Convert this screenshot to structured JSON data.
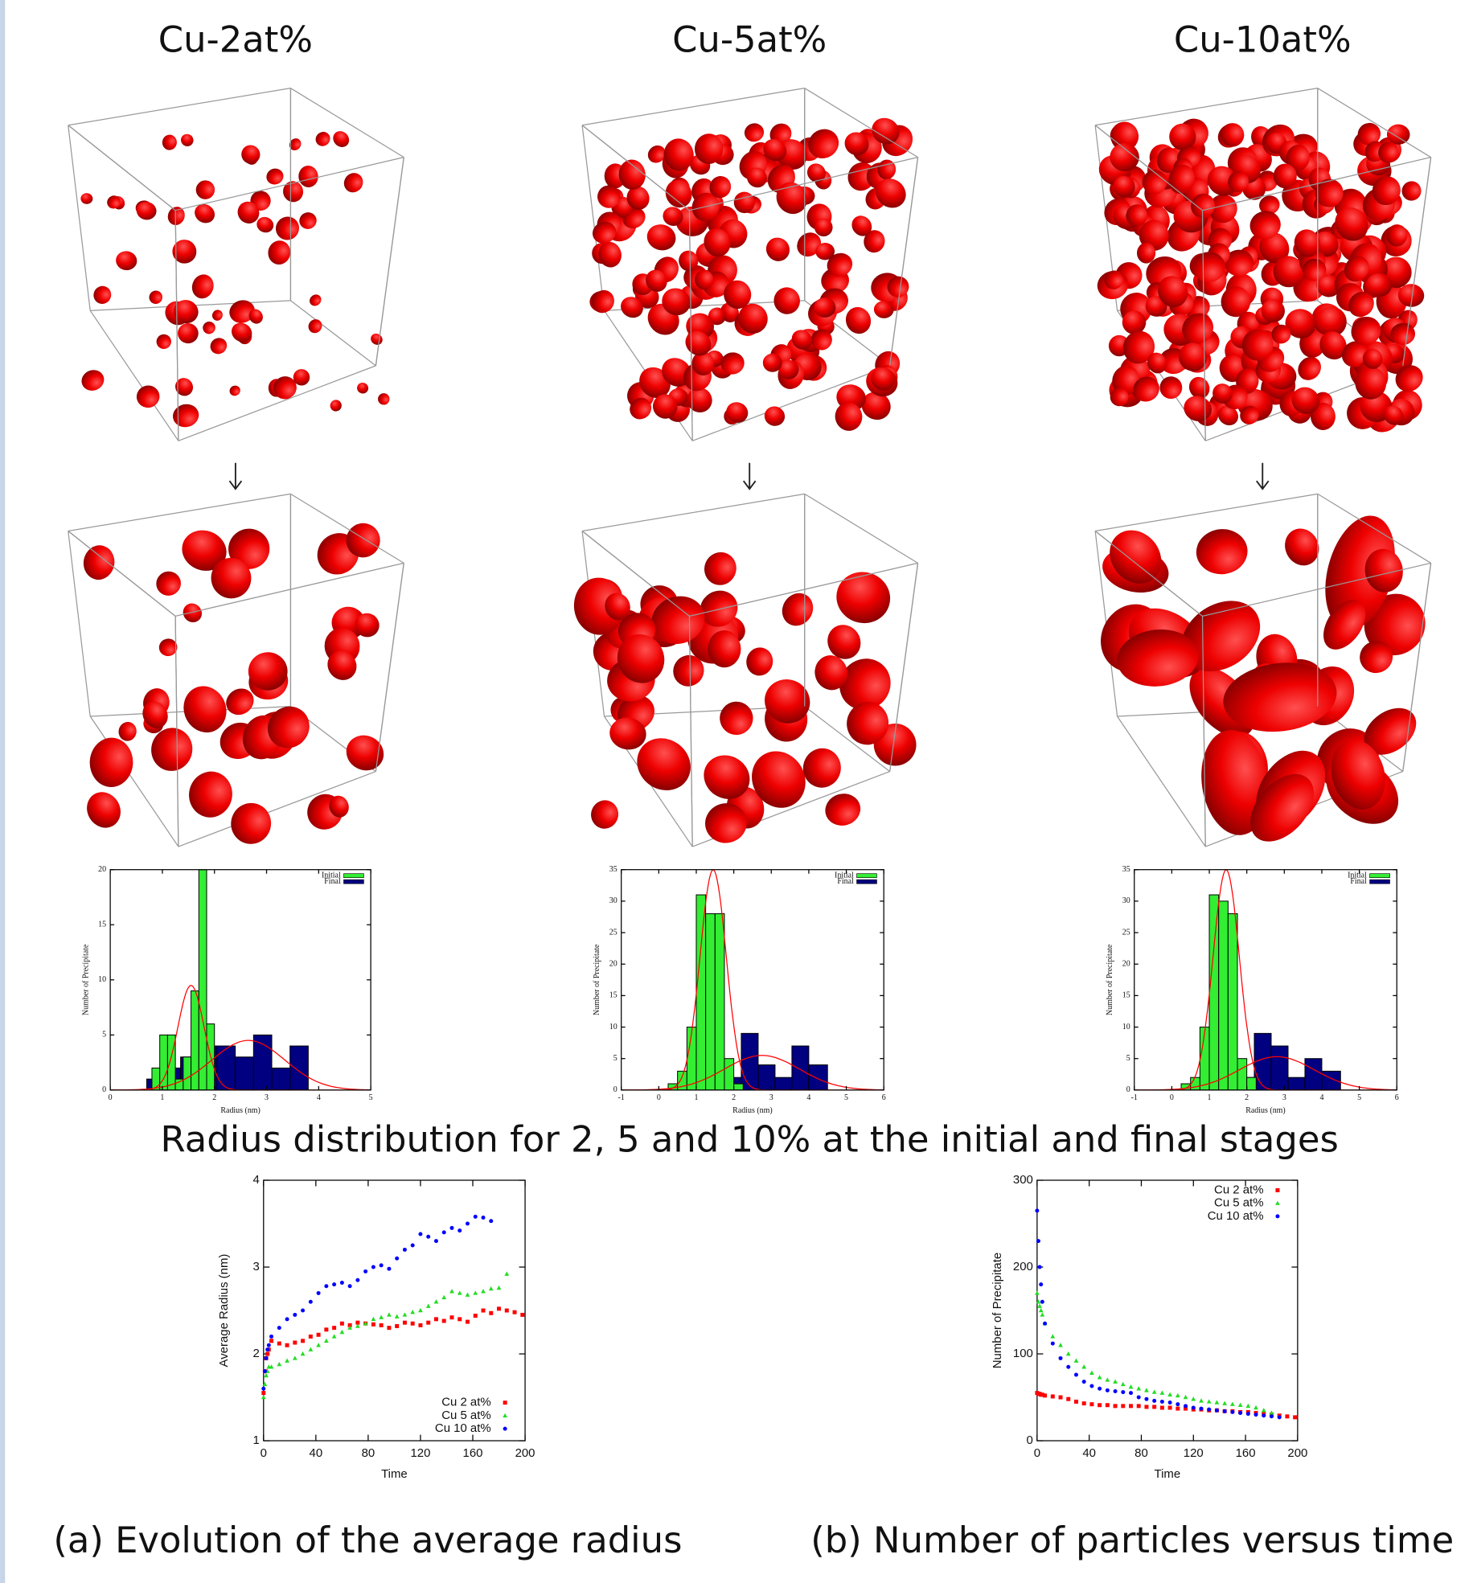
{
  "column_titles": [
    "Cu-2at%",
    "Cu-5at%",
    "Cu-10at%"
  ],
  "caption": "Radius distribution for 2, 5 and 10% at the initial and final stages",
  "subcaptions": [
    "(a) Evolution of the average radius",
    "(b) Number of particles versus time"
  ],
  "chart_data": [
    {
      "type": "histogram",
      "xlabel": "Radius (nm)",
      "ylabel": "Number of Precipitate",
      "xlim": [
        0,
        5
      ],
      "xticks": [
        0,
        1,
        2,
        3,
        4,
        5
      ],
      "ylim": [
        0,
        20
      ],
      "yticks": [
        0,
        5,
        10,
        15,
        20
      ],
      "legend": "upper right",
      "series": [
        {
          "name": "Initial",
          "color": "#33ee33",
          "bins": [
            0.8,
            0.95,
            1.1,
            1.25,
            1.4,
            1.55,
            1.7,
            1.85,
            2.0
          ],
          "values": [
            2,
            5,
            5,
            1,
            3,
            9,
            20,
            6
          ]
        },
        {
          "name": "Final",
          "color": "#000080",
          "bins": [
            0.7,
            1.0,
            1.35,
            1.7,
            2.05,
            2.4,
            2.75,
            3.1,
            3.45,
            3.8
          ],
          "values": [
            1,
            2,
            3,
            4,
            4,
            3,
            5,
            2,
            4
          ]
        }
      ],
      "fits": [
        {
          "color": "#ff0000",
          "mean": 1.55,
          "sd": 0.25,
          "peak": 9.5
        },
        {
          "color": "#ff0000",
          "mean": 2.65,
          "sd": 0.7,
          "peak": 4.5
        }
      ]
    },
    {
      "type": "histogram",
      "xlabel": "Radius (nm)",
      "ylabel": "Number of Precipitate",
      "xlim": [
        -1,
        6
      ],
      "xticks": [
        -1,
        0,
        1,
        2,
        3,
        4,
        5,
        6
      ],
      "ylim": [
        0,
        35
      ],
      "yticks": [
        0,
        5,
        10,
        15,
        20,
        25,
        30,
        35
      ],
      "legend": "upper right",
      "series": [
        {
          "name": "Initial",
          "color": "#33ee33",
          "bins": [
            0.25,
            0.5,
            0.75,
            1.0,
            1.25,
            1.5,
            1.75,
            2.0,
            2.25
          ],
          "values": [
            1,
            3,
            10,
            31,
            28,
            28,
            5,
            1
          ]
        },
        {
          "name": "Final",
          "color": "#000080",
          "bins": [
            0.4,
            0.85,
            1.3,
            1.75,
            2.2,
            2.65,
            3.1,
            3.55,
            4.0,
            4.5
          ],
          "values": [
            1,
            3,
            2,
            2,
            9,
            4,
            2,
            7,
            4,
            2
          ]
        }
      ],
      "fits": [
        {
          "color": "#ff0000",
          "mean": 1.45,
          "sd": 0.35,
          "peak": 35
        },
        {
          "color": "#ff0000",
          "mean": 2.75,
          "sd": 1.0,
          "peak": 5.5
        }
      ]
    },
    {
      "type": "histogram",
      "xlabel": "Radius (nm)",
      "ylabel": "Number of Precipitate",
      "xlim": [
        -1,
        6
      ],
      "xticks": [
        -1,
        0,
        1,
        2,
        3,
        4,
        5,
        6
      ],
      "ylim": [
        0,
        35
      ],
      "yticks": [
        0,
        5,
        10,
        15,
        20,
        25,
        30,
        35
      ],
      "legend": "upper right",
      "series": [
        {
          "name": "Initial",
          "color": "#33ee33",
          "bins": [
            0.25,
            0.5,
            0.75,
            1.0,
            1.25,
            1.5,
            1.75,
            2.0,
            2.25
          ],
          "values": [
            1,
            2,
            10,
            31,
            30,
            28,
            5,
            2
          ]
        },
        {
          "name": "Final",
          "color": "#000080",
          "bins": [
            0.4,
            0.85,
            1.3,
            1.75,
            2.2,
            2.65,
            3.1,
            3.55,
            4.0,
            4.5
          ],
          "values": [
            1,
            2,
            2,
            2,
            9,
            7,
            2,
            5,
            3,
            2
          ]
        }
      ],
      "fits": [
        {
          "color": "#ff0000",
          "mean": 1.45,
          "sd": 0.35,
          "peak": 35
        },
        {
          "color": "#ff0000",
          "mean": 2.8,
          "sd": 1.0,
          "peak": 5.3
        }
      ]
    },
    {
      "type": "scatter",
      "xlabel": "Time",
      "ylabel": "Average Radius (nm)",
      "xlim": [
        0,
        200
      ],
      "xticks": [
        0,
        40,
        80,
        120,
        160,
        200
      ],
      "ylim": [
        1,
        4
      ],
      "yticks": [
        1,
        2,
        3,
        4
      ],
      "legend": "lower right",
      "series": [
        {
          "name": "Cu 2 at%",
          "color": "#ff0000",
          "marker": "square",
          "x": [
            0,
            1,
            2,
            3,
            4,
            6,
            12,
            18,
            24,
            30,
            36,
            42,
            48,
            54,
            60,
            66,
            72,
            78,
            84,
            90,
            96,
            102,
            108,
            114,
            120,
            126,
            132,
            138,
            144,
            150,
            156,
            162,
            168,
            174,
            180,
            186,
            192,
            198
          ],
          "values": [
            1.55,
            1.8,
            1.95,
            2.0,
            2.05,
            2.15,
            2.12,
            2.1,
            2.13,
            2.15,
            2.2,
            2.22,
            2.28,
            2.3,
            2.35,
            2.33,
            2.36,
            2.35,
            2.34,
            2.33,
            2.3,
            2.32,
            2.36,
            2.35,
            2.33,
            2.36,
            2.4,
            2.38,
            2.42,
            2.4,
            2.37,
            2.44,
            2.5,
            2.47,
            2.52,
            2.5,
            2.48,
            2.45
          ]
        },
        {
          "name": "Cu 5 at%",
          "color": "#22dd22",
          "marker": "triangle",
          "x": [
            0,
            1,
            2,
            3,
            4,
            6,
            12,
            18,
            24,
            30,
            36,
            42,
            48,
            54,
            60,
            66,
            72,
            78,
            84,
            90,
            96,
            102,
            108,
            114,
            120,
            126,
            132,
            138,
            144,
            150,
            156,
            162,
            168,
            174,
            180,
            186
          ],
          "values": [
            1.5,
            1.65,
            1.75,
            1.8,
            1.85,
            1.85,
            1.88,
            1.92,
            1.95,
            2.0,
            2.05,
            2.1,
            2.15,
            2.2,
            2.25,
            2.3,
            2.32,
            2.35,
            2.4,
            2.42,
            2.45,
            2.43,
            2.45,
            2.48,
            2.5,
            2.55,
            2.6,
            2.65,
            2.72,
            2.7,
            2.68,
            2.7,
            2.72,
            2.75,
            2.76,
            2.92
          ]
        },
        {
          "name": "Cu 10 at%",
          "color": "#0000ff",
          "marker": "circle",
          "x": [
            0,
            1,
            2,
            3,
            4,
            6,
            12,
            18,
            24,
            30,
            36,
            42,
            48,
            54,
            60,
            66,
            72,
            78,
            84,
            90,
            96,
            102,
            108,
            114,
            120,
            126,
            132,
            138,
            144,
            150,
            156,
            162,
            168,
            174
          ],
          "values": [
            1.6,
            1.8,
            1.95,
            2.05,
            2.1,
            2.2,
            2.3,
            2.4,
            2.45,
            2.5,
            2.6,
            2.7,
            2.78,
            2.8,
            2.82,
            2.78,
            2.85,
            2.95,
            3.0,
            3.02,
            2.98,
            3.1,
            3.2,
            3.25,
            3.38,
            3.35,
            3.3,
            3.4,
            3.45,
            3.42,
            3.5,
            3.58,
            3.57,
            3.53
          ]
        }
      ]
    },
    {
      "type": "scatter",
      "xlabel": "Time",
      "ylabel": "Number of Precipitate",
      "xlim": [
        0,
        200
      ],
      "xticks": [
        0,
        40,
        80,
        120,
        160,
        200
      ],
      "ylim": [
        0,
        300
      ],
      "yticks": [
        0,
        100,
        200,
        300
      ],
      "legend": "upper right",
      "series": [
        {
          "name": "Cu 2 at%",
          "color": "#ff0000",
          "marker": "square",
          "x": [
            0,
            1,
            2,
            3,
            4,
            6,
            12,
            18,
            24,
            30,
            36,
            42,
            48,
            54,
            60,
            66,
            72,
            78,
            84,
            90,
            96,
            102,
            108,
            114,
            120,
            126,
            132,
            138,
            144,
            150,
            156,
            162,
            168,
            174,
            180,
            186,
            192,
            198
          ],
          "values": [
            55,
            54,
            54,
            53,
            53,
            52,
            51,
            50,
            48,
            45,
            43,
            42,
            41,
            41,
            40,
            40,
            40,
            40,
            39,
            39,
            38,
            38,
            37,
            37,
            36,
            36,
            35,
            35,
            34,
            34,
            33,
            33,
            32,
            31,
            30,
            29,
            28,
            27
          ]
        },
        {
          "name": "Cu 5 at%",
          "color": "#22dd22",
          "marker": "triangle",
          "x": [
            0,
            1,
            2,
            3,
            4,
            6,
            12,
            18,
            24,
            30,
            36,
            42,
            48,
            54,
            60,
            66,
            72,
            78,
            84,
            90,
            96,
            102,
            108,
            114,
            120,
            126,
            132,
            138,
            144,
            150,
            156,
            162,
            168,
            174,
            180
          ],
          "values": [
            170,
            160,
            155,
            150,
            145,
            135,
            120,
            110,
            100,
            92,
            85,
            78,
            73,
            70,
            68,
            65,
            62,
            60,
            58,
            56,
            55,
            53,
            52,
            50,
            48,
            46,
            45,
            44,
            43,
            42,
            41,
            40,
            38,
            35,
            32
          ]
        },
        {
          "name": "Cu 10 at%",
          "color": "#0000ff",
          "marker": "circle",
          "x": [
            0,
            1,
            2,
            3,
            4,
            6,
            12,
            18,
            24,
            30,
            36,
            42,
            48,
            54,
            60,
            66,
            72,
            78,
            84,
            90,
            96,
            102,
            108,
            114,
            120,
            126,
            132,
            138,
            144,
            150,
            156,
            162,
            168,
            174,
            180,
            186
          ],
          "values": [
            265,
            230,
            200,
            180,
            160,
            135,
            112,
            95,
            85,
            76,
            68,
            63,
            60,
            58,
            57,
            56,
            55,
            50,
            48,
            46,
            45,
            44,
            42,
            40,
            38,
            37,
            36,
            35,
            34,
            33,
            32,
            31,
            30,
            29,
            28,
            27
          ]
        }
      ]
    }
  ]
}
